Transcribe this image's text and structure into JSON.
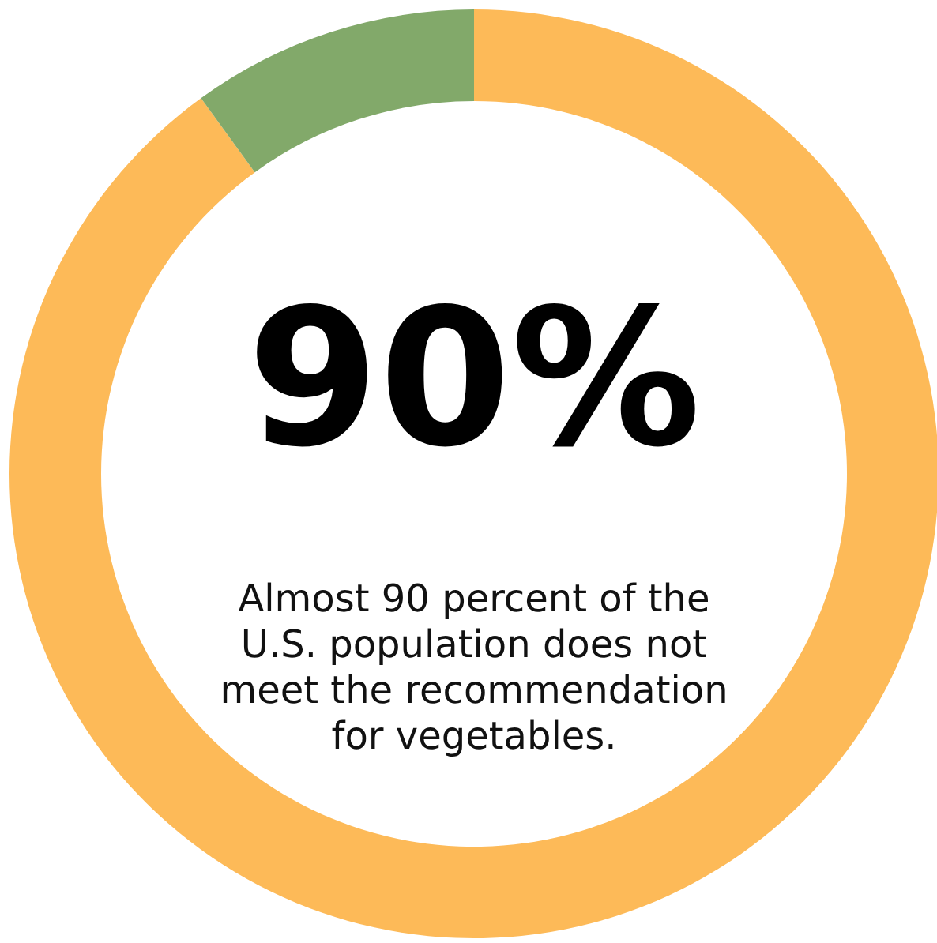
{
  "chart_data": {
    "type": "donut",
    "categories": [
      null,
      null
    ],
    "values": [
      90,
      10
    ],
    "colors": [
      "#fdba58",
      "#82a96a"
    ],
    "annotations": [
      "90%",
      "Almost 90 percent of the U.S. population does not meet the recommendation for vegetables."
    ]
  }
}
